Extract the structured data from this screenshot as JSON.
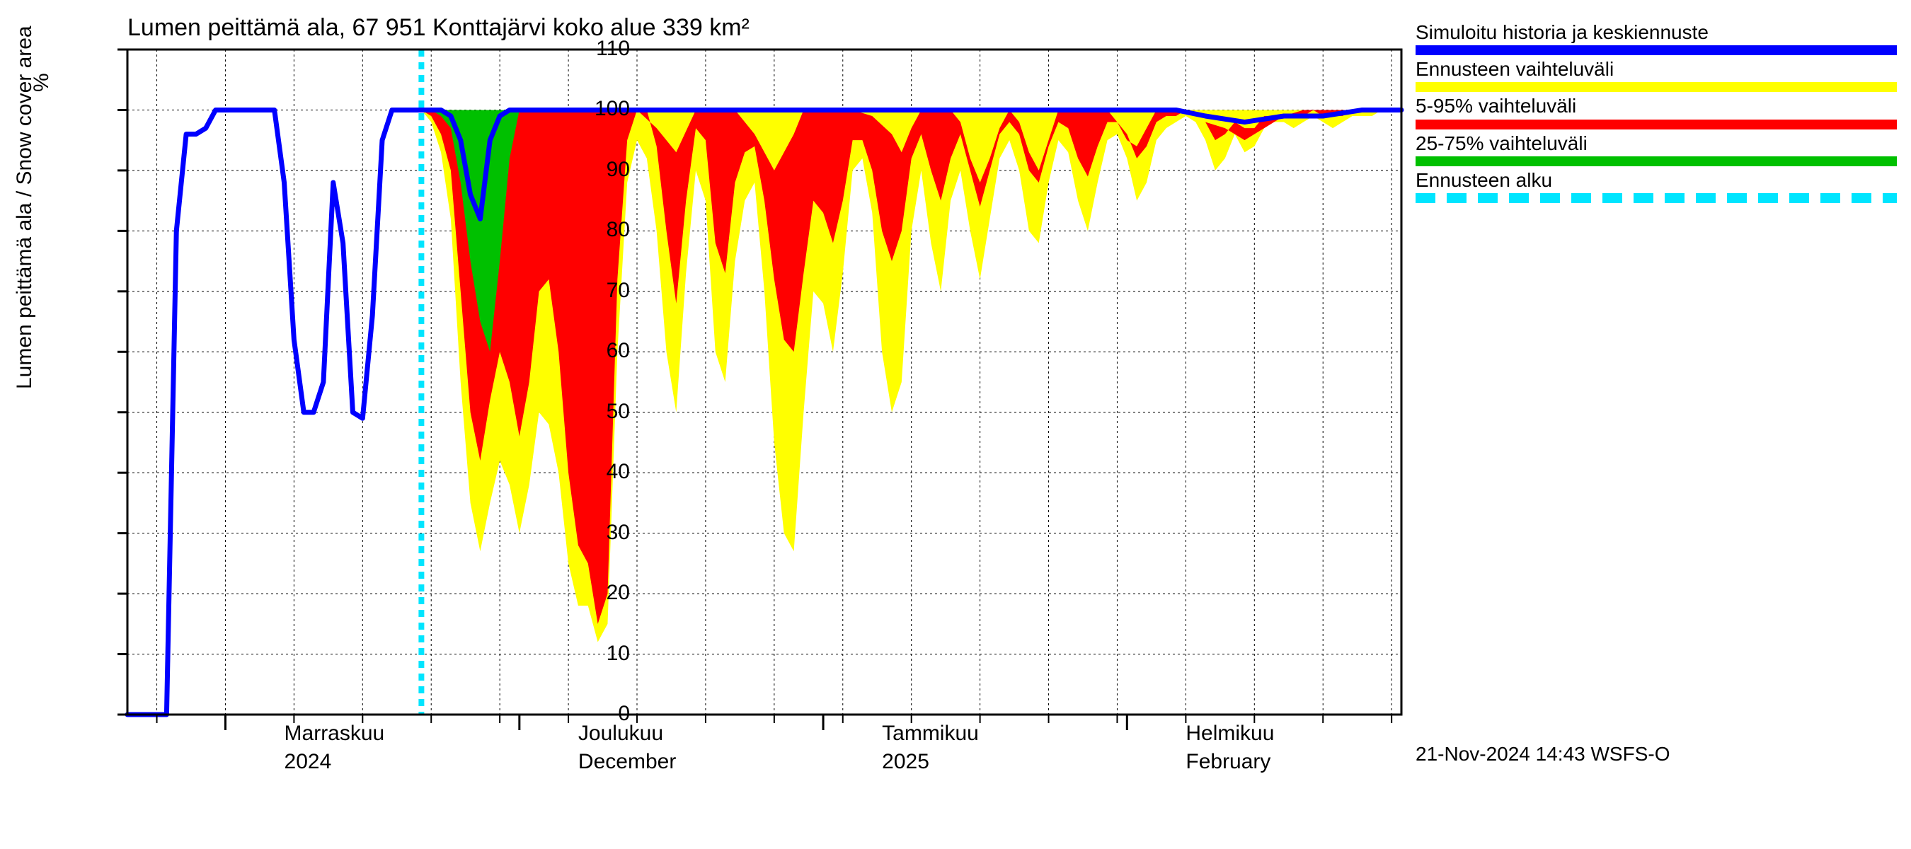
{
  "title": "Lumen peittämä ala, 67 951 Konttajärvi koko alue 339 km²",
  "ylabel": "Lumen peittämä ala / Snow cover area",
  "yunit": "%",
  "timestamp": "21-Nov-2024 14:43 WSFS-O",
  "type": "area+line",
  "background_color": "#ffffff",
  "grid_color": "#000000",
  "grid_dash": "3,4",
  "axis_color": "#000000",
  "title_fontsize": 34,
  "label_fontsize": 30,
  "tick_fontsize": 30,
  "legend_fontsize": 28,
  "ylim": [
    0,
    110
  ],
  "yticks": [
    0,
    10,
    20,
    30,
    40,
    50,
    60,
    70,
    80,
    90,
    100,
    110
  ],
  "x_days_total": 130,
  "x_months": [
    {
      "label_top": "Marraskuu",
      "label_bot": "2024",
      "tick_day": 10,
      "label_day": 16
    },
    {
      "label_top": "Joulukuu",
      "label_bot": "December",
      "tick_day": 40,
      "label_day": 46
    },
    {
      "label_top": "Tammikuu",
      "label_bot": "2025",
      "tick_day": 71,
      "label_day": 77
    },
    {
      "label_top": "Helmikuu",
      "label_bot": "February",
      "tick_day": 102,
      "label_day": 108
    }
  ],
  "x_weekly_ticks": [
    3,
    10,
    17,
    24,
    31,
    38,
    45,
    52,
    59,
    66,
    73,
    80,
    87,
    94,
    101,
    108,
    115,
    122,
    129
  ],
  "forecast_start_day": 30,
  "forecast_start_color": "#00e5ff",
  "forecast_start_dash": "10,8",
  "forecast_start_width": 8,
  "legend": [
    {
      "label": "Simuloitu historia ja keskiennuste",
      "color": "#0000ff",
      "style": "solid"
    },
    {
      "label": "Ennusteen vaihteluväli",
      "color": "#ffff00",
      "style": "solid"
    },
    {
      "label": "5-95% vaihteluväli",
      "color": "#ff0000",
      "style": "solid"
    },
    {
      "label": "25-75% vaihteluväli",
      "color": "#00c000",
      "style": "solid"
    },
    {
      "label": "Ennusteen alku",
      "color": "#00e5ff",
      "style": "dashed"
    }
  ],
  "blue_line": {
    "color": "#0000ff",
    "width": 7,
    "points": [
      [
        0,
        0
      ],
      [
        3,
        0
      ],
      [
        4,
        0
      ],
      [
        5,
        80
      ],
      [
        6,
        96
      ],
      [
        7,
        96
      ],
      [
        8,
        97
      ],
      [
        9,
        100
      ],
      [
        10,
        100
      ],
      [
        14,
        100
      ],
      [
        15,
        100
      ],
      [
        16,
        88
      ],
      [
        17,
        62
      ],
      [
        18,
        50
      ],
      [
        19,
        50
      ],
      [
        20,
        55
      ],
      [
        21,
        88
      ],
      [
        22,
        78
      ],
      [
        23,
        50
      ],
      [
        24,
        49
      ],
      [
        25,
        66
      ],
      [
        26,
        95
      ],
      [
        27,
        100
      ],
      [
        28,
        100
      ],
      [
        29,
        100
      ],
      [
        30,
        100
      ],
      [
        31,
        100
      ],
      [
        32,
        100
      ],
      [
        33,
        99
      ],
      [
        34,
        95
      ],
      [
        35,
        86
      ],
      [
        36,
        82
      ],
      [
        37,
        95
      ],
      [
        38,
        99
      ],
      [
        39,
        100
      ],
      [
        40,
        100
      ],
      [
        45,
        100
      ],
      [
        50,
        100
      ],
      [
        55,
        100
      ],
      [
        60,
        100
      ],
      [
        65,
        100
      ],
      [
        70,
        100
      ],
      [
        75,
        100
      ],
      [
        80,
        100
      ],
      [
        85,
        100
      ],
      [
        90,
        100
      ],
      [
        95,
        100
      ],
      [
        100,
        100
      ],
      [
        105,
        100
      ],
      [
        107,
        100
      ],
      [
        110,
        99
      ],
      [
        114,
        98
      ],
      [
        118,
        99
      ],
      [
        122,
        99
      ],
      [
        126,
        100
      ],
      [
        130,
        100
      ]
    ]
  },
  "yellow_band": {
    "color": "#ffff00",
    "upper": [
      [
        30,
        100
      ],
      [
        35,
        100
      ],
      [
        40,
        100
      ],
      [
        45,
        100
      ],
      [
        50,
        100
      ],
      [
        55,
        100
      ],
      [
        60,
        100
      ],
      [
        65,
        100
      ],
      [
        70,
        100
      ],
      [
        75,
        100
      ],
      [
        80,
        100
      ],
      [
        85,
        100
      ],
      [
        90,
        100
      ],
      [
        95,
        100
      ],
      [
        100,
        100
      ],
      [
        105,
        100
      ],
      [
        110,
        100
      ],
      [
        115,
        100
      ],
      [
        120,
        100
      ],
      [
        125,
        100
      ],
      [
        130,
        100
      ]
    ],
    "lower": [
      [
        30,
        100
      ],
      [
        31,
        98
      ],
      [
        32,
        93
      ],
      [
        33,
        82
      ],
      [
        34,
        55
      ],
      [
        35,
        35
      ],
      [
        36,
        27
      ],
      [
        37,
        35
      ],
      [
        38,
        42
      ],
      [
        39,
        38
      ],
      [
        40,
        30
      ],
      [
        41,
        38
      ],
      [
        42,
        50
      ],
      [
        43,
        48
      ],
      [
        44,
        40
      ],
      [
        45,
        25
      ],
      [
        46,
        18
      ],
      [
        47,
        18
      ],
      [
        48,
        12
      ],
      [
        49,
        15
      ],
      [
        50,
        60
      ],
      [
        51,
        88
      ],
      [
        52,
        95
      ],
      [
        53,
        92
      ],
      [
        54,
        80
      ],
      [
        55,
        60
      ],
      [
        56,
        50
      ],
      [
        57,
        73
      ],
      [
        58,
        90
      ],
      [
        59,
        85
      ],
      [
        60,
        60
      ],
      [
        61,
        55
      ],
      [
        62,
        75
      ],
      [
        63,
        85
      ],
      [
        64,
        88
      ],
      [
        65,
        70
      ],
      [
        66,
        45
      ],
      [
        67,
        30
      ],
      [
        68,
        27
      ],
      [
        69,
        50
      ],
      [
        70,
        70
      ],
      [
        71,
        68
      ],
      [
        72,
        60
      ],
      [
        73,
        73
      ],
      [
        74,
        90
      ],
      [
        75,
        92
      ],
      [
        76,
        83
      ],
      [
        77,
        60
      ],
      [
        78,
        50
      ],
      [
        79,
        55
      ],
      [
        80,
        80
      ],
      [
        81,
        90
      ],
      [
        82,
        78
      ],
      [
        83,
        70
      ],
      [
        84,
        85
      ],
      [
        85,
        90
      ],
      [
        86,
        80
      ],
      [
        87,
        72
      ],
      [
        88,
        82
      ],
      [
        89,
        92
      ],
      [
        90,
        95
      ],
      [
        91,
        90
      ],
      [
        92,
        80
      ],
      [
        93,
        78
      ],
      [
        94,
        88
      ],
      [
        95,
        95
      ],
      [
        96,
        93
      ],
      [
        97,
        85
      ],
      [
        98,
        80
      ],
      [
        99,
        88
      ],
      [
        100,
        95
      ],
      [
        101,
        96
      ],
      [
        102,
        92
      ],
      [
        103,
        85
      ],
      [
        104,
        88
      ],
      [
        105,
        95
      ],
      [
        106,
        97
      ],
      [
        107,
        98
      ],
      [
        108,
        99
      ],
      [
        109,
        98
      ],
      [
        110,
        95
      ],
      [
        111,
        90
      ],
      [
        112,
        92
      ],
      [
        113,
        96
      ],
      [
        114,
        93
      ],
      [
        115,
        94
      ],
      [
        116,
        97
      ],
      [
        117,
        98
      ],
      [
        118,
        98
      ],
      [
        119,
        97
      ],
      [
        120,
        98
      ],
      [
        121,
        99
      ],
      [
        122,
        98
      ],
      [
        123,
        97
      ],
      [
        124,
        98
      ],
      [
        125,
        99
      ],
      [
        126,
        99
      ],
      [
        127,
        99
      ],
      [
        128,
        100
      ],
      [
        129,
        100
      ],
      [
        130,
        100
      ]
    ]
  },
  "red_band": {
    "color": "#ff0000",
    "upper": [
      [
        30,
        100
      ],
      [
        32,
        100
      ],
      [
        34,
        99
      ],
      [
        36,
        98
      ],
      [
        38,
        100
      ],
      [
        40,
        100
      ],
      [
        42,
        100
      ],
      [
        44,
        100
      ],
      [
        46,
        100
      ],
      [
        48,
        100
      ],
      [
        50,
        100
      ],
      [
        52,
        100
      ],
      [
        54,
        97
      ],
      [
        56,
        93
      ],
      [
        58,
        100
      ],
      [
        60,
        100
      ],
      [
        62,
        100
      ],
      [
        63,
        98
      ],
      [
        64,
        96
      ],
      [
        65,
        93
      ],
      [
        66,
        90
      ],
      [
        67,
        93
      ],
      [
        68,
        96
      ],
      [
        69,
        100
      ],
      [
        70,
        100
      ],
      [
        72,
        100
      ],
      [
        74,
        100
      ],
      [
        76,
        99
      ],
      [
        78,
        96
      ],
      [
        79,
        93
      ],
      [
        80,
        97
      ],
      [
        81,
        100
      ],
      [
        82,
        100
      ],
      [
        84,
        100
      ],
      [
        85,
        98
      ],
      [
        86,
        92
      ],
      [
        87,
        88
      ],
      [
        88,
        92
      ],
      [
        89,
        97
      ],
      [
        90,
        100
      ],
      [
        91,
        98
      ],
      [
        92,
        93
      ],
      [
        93,
        90
      ],
      [
        94,
        95
      ],
      [
        95,
        100
      ],
      [
        96,
        100
      ],
      [
        98,
        100
      ],
      [
        100,
        100
      ],
      [
        101,
        98
      ],
      [
        102,
        95
      ],
      [
        103,
        94
      ],
      [
        104,
        97
      ],
      [
        105,
        100
      ],
      [
        106,
        100
      ],
      [
        108,
        100
      ],
      [
        110,
        98
      ],
      [
        112,
        97
      ],
      [
        114,
        95
      ],
      [
        116,
        97
      ],
      [
        118,
        99
      ],
      [
        120,
        100
      ],
      [
        122,
        100
      ],
      [
        124,
        100
      ],
      [
        126,
        100
      ],
      [
        128,
        100
      ],
      [
        130,
        100
      ]
    ],
    "lower": [
      [
        30,
        100
      ],
      [
        31,
        99
      ],
      [
        32,
        96
      ],
      [
        33,
        90
      ],
      [
        34,
        70
      ],
      [
        35,
        50
      ],
      [
        36,
        42
      ],
      [
        37,
        52
      ],
      [
        38,
        60
      ],
      [
        39,
        55
      ],
      [
        40,
        46
      ],
      [
        41,
        55
      ],
      [
        42,
        70
      ],
      [
        43,
        72
      ],
      [
        44,
        60
      ],
      [
        45,
        40
      ],
      [
        46,
        28
      ],
      [
        47,
        25
      ],
      [
        48,
        15
      ],
      [
        49,
        20
      ],
      [
        50,
        72
      ],
      [
        51,
        95
      ],
      [
        52,
        100
      ],
      [
        53,
        100
      ],
      [
        54,
        94
      ],
      [
        55,
        80
      ],
      [
        56,
        68
      ],
      [
        57,
        85
      ],
      [
        58,
        97
      ],
      [
        59,
        95
      ],
      [
        60,
        78
      ],
      [
        61,
        73
      ],
      [
        62,
        88
      ],
      [
        63,
        93
      ],
      [
        64,
        94
      ],
      [
        65,
        85
      ],
      [
        66,
        72
      ],
      [
        67,
        62
      ],
      [
        68,
        60
      ],
      [
        69,
        73
      ],
      [
        70,
        85
      ],
      [
        71,
        83
      ],
      [
        72,
        78
      ],
      [
        73,
        85
      ],
      [
        74,
        95
      ],
      [
        75,
        95
      ],
      [
        76,
        90
      ],
      [
        77,
        80
      ],
      [
        78,
        75
      ],
      [
        79,
        80
      ],
      [
        80,
        92
      ],
      [
        81,
        96
      ],
      [
        82,
        90
      ],
      [
        83,
        85
      ],
      [
        84,
        92
      ],
      [
        85,
        96
      ],
      [
        86,
        90
      ],
      [
        87,
        84
      ],
      [
        88,
        90
      ],
      [
        89,
        96
      ],
      [
        90,
        98
      ],
      [
        91,
        96
      ],
      [
        92,
        90
      ],
      [
        93,
        88
      ],
      [
        94,
        94
      ],
      [
        95,
        98
      ],
      [
        96,
        97
      ],
      [
        97,
        92
      ],
      [
        98,
        89
      ],
      [
        99,
        94
      ],
      [
        100,
        98
      ],
      [
        101,
        98
      ],
      [
        102,
        96
      ],
      [
        103,
        92
      ],
      [
        104,
        94
      ],
      [
        105,
        98
      ],
      [
        106,
        99
      ],
      [
        107,
        99
      ],
      [
        108,
        100
      ],
      [
        109,
        99
      ],
      [
        110,
        98
      ],
      [
        111,
        95
      ],
      [
        112,
        96
      ],
      [
        113,
        98
      ],
      [
        114,
        97
      ],
      [
        115,
        97
      ],
      [
        116,
        99
      ],
      [
        117,
        99
      ],
      [
        118,
        99
      ],
      [
        119,
        99
      ],
      [
        120,
        99
      ],
      [
        121,
        100
      ],
      [
        122,
        99
      ],
      [
        123,
        99
      ],
      [
        124,
        99
      ],
      [
        125,
        100
      ],
      [
        126,
        100
      ],
      [
        127,
        100
      ],
      [
        128,
        100
      ],
      [
        129,
        100
      ],
      [
        130,
        100
      ]
    ]
  },
  "green_band": {
    "color": "#00c000",
    "upper": [
      [
        30,
        100
      ],
      [
        31,
        100
      ],
      [
        32,
        100
      ],
      [
        33,
        100
      ],
      [
        34,
        100
      ],
      [
        35,
        100
      ],
      [
        36,
        100
      ],
      [
        37,
        100
      ],
      [
        38,
        100
      ],
      [
        39,
        100
      ],
      [
        40,
        100
      ],
      [
        41,
        100
      ],
      [
        42,
        100
      ]
    ],
    "lower": [
      [
        30,
        100
      ],
      [
        31,
        100
      ],
      [
        32,
        99
      ],
      [
        33,
        97
      ],
      [
        34,
        88
      ],
      [
        35,
        75
      ],
      [
        36,
        65
      ],
      [
        37,
        60
      ],
      [
        38,
        75
      ],
      [
        39,
        92
      ],
      [
        40,
        100
      ],
      [
        41,
        100
      ],
      [
        42,
        100
      ]
    ]
  }
}
